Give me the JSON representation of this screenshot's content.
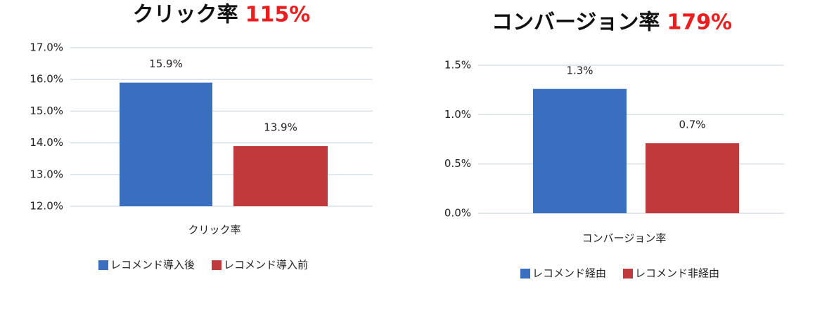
{
  "chart_data": [
    {
      "type": "bar",
      "title": "クリック率",
      "title_highlight": "115%",
      "categories": [
        "クリック率"
      ],
      "series": [
        {
          "name": "レコメンド導入後",
          "color": "#3a6fbf",
          "values": [
            15.9
          ],
          "value_labels": [
            "15.9%"
          ]
        },
        {
          "name": "レコメンド導入前",
          "color": "#c0393b",
          "values": [
            13.9
          ],
          "value_labels": [
            "13.9%"
          ]
        }
      ],
      "ylim": [
        12,
        17
      ],
      "yticks": [
        {
          "value": 12,
          "label": "12.0%"
        },
        {
          "value": 13,
          "label": "13.0%"
        },
        {
          "value": 14,
          "label": "14.0%"
        },
        {
          "value": 15,
          "label": "15.0%"
        },
        {
          "value": 16,
          "label": "16.0%"
        },
        {
          "value": 17,
          "label": "17.0%"
        }
      ],
      "grid": true
    },
    {
      "type": "bar",
      "title": "コンバージョン率",
      "title_highlight": "179%",
      "categories": [
        "コンバージョン率"
      ],
      "series": [
        {
          "name": "レコメンド経由",
          "color": "#3a6fbf",
          "values": [
            1.26
          ],
          "value_labels": [
            "1.3%"
          ]
        },
        {
          "name": "レコメンド非経由",
          "color": "#c0393b",
          "values": [
            0.71
          ],
          "value_labels": [
            "0.7%"
          ]
        }
      ],
      "ylim": [
        0,
        1.5
      ],
      "yticks": [
        {
          "value": 0,
          "label": "0.0%"
        },
        {
          "value": 0.5,
          "label": "0.5%"
        },
        {
          "value": 1,
          "label": "1.0%"
        },
        {
          "value": 1.5,
          "label": "1.5%"
        }
      ],
      "grid": true
    }
  ]
}
